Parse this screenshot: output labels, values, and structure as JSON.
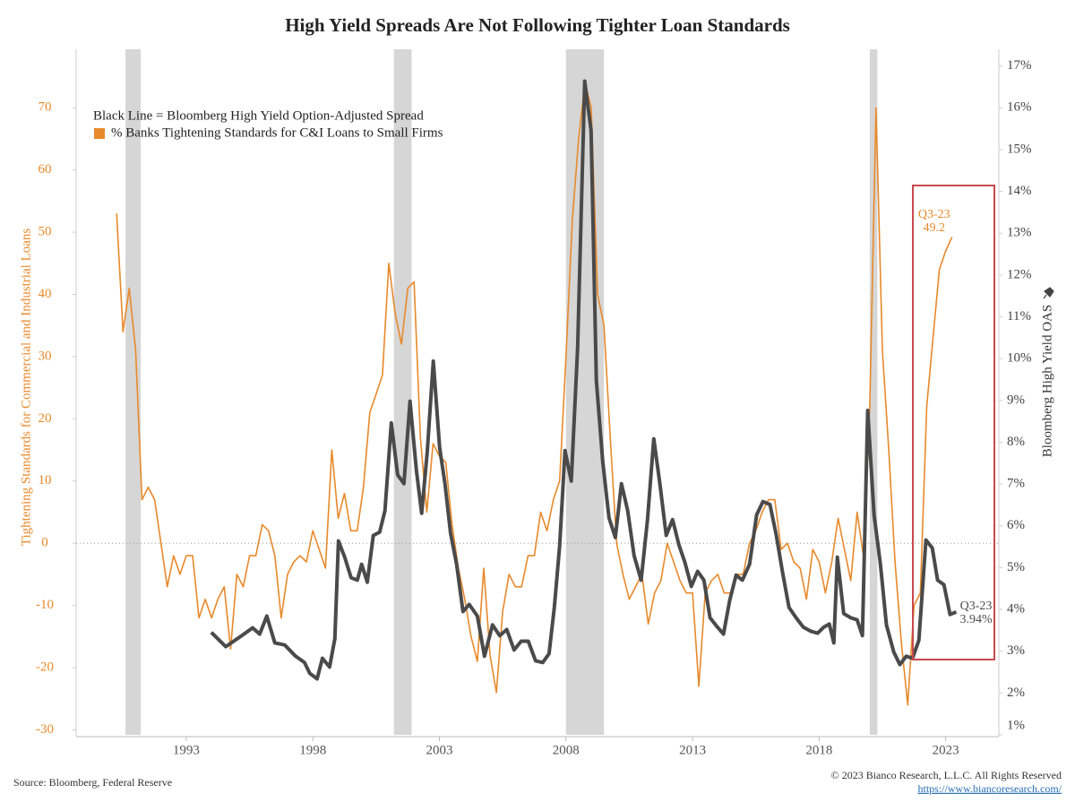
{
  "chart_data": {
    "type": "line",
    "title": "High Yield Spreads Are Not Following Tighter Loan Standards",
    "ylabel": "Tightening Standards for Commercial and Industrial Loans",
    "y2label": "Bloomberg High Yield OAS",
    "source": "Source: Bloomberg, Federal Reserve",
    "copyright": "© 2023 Bianco Research, L.L.C. All Rights Reserved",
    "url": "https://www.biancoresearch.com/",
    "xlim": [
      1988.65,
      2025.1
    ],
    "xticks": [
      1993,
      1998,
      2003,
      2008,
      2013,
      2018,
      2023
    ],
    "ylim": [
      -30.8,
      79.4
    ],
    "yticks": [
      -30,
      -20,
      -10,
      0,
      10,
      20,
      30,
      40,
      50,
      60,
      70
    ],
    "y2lim": [
      1.0,
      17.4
    ],
    "y2ticks": [
      {
        "value": 1,
        "label": "1%"
      },
      {
        "value": 2,
        "label": "2%"
      },
      {
        "value": 3,
        "label": "3%"
      },
      {
        "value": 4,
        "label": "4%"
      },
      {
        "value": 5,
        "label": "5%"
      },
      {
        "value": 6,
        "label": "6%"
      },
      {
        "value": 7,
        "label": "7%"
      },
      {
        "value": 8,
        "label": "8%"
      },
      {
        "value": 9,
        "label": "9%"
      },
      {
        "value": 10,
        "label": "10%"
      },
      {
        "value": 11,
        "label": "11%"
      },
      {
        "value": 12,
        "label": "12%"
      },
      {
        "value": 13,
        "label": "13%"
      },
      {
        "value": 14,
        "label": "14%"
      },
      {
        "value": 15,
        "label": "15%"
      },
      {
        "value": 16,
        "label": "16%"
      },
      {
        "value": 17,
        "label": "17%"
      }
    ],
    "zero_line": true,
    "recessions": [
      [
        1990.6,
        1991.2
      ],
      [
        2001.2,
        2001.9
      ],
      [
        2008.0,
        2009.5
      ],
      [
        2020.0,
        2020.3
      ]
    ],
    "series": [
      {
        "name": "% Banks Tightening Standards for C&I Loans to Small Firms",
        "color": "#e8892b",
        "axis": "y",
        "end_label": [
          "Q3-23",
          "49.2"
        ],
        "x": [
          1990.25,
          1990.5,
          1990.75,
          1991,
          1991.25,
          1991.5,
          1991.75,
          1992,
          1992.25,
          1992.5,
          1992.75,
          1993,
          1993.25,
          1993.5,
          1993.75,
          1994,
          1994.25,
          1994.5,
          1994.75,
          1995,
          1995.25,
          1995.5,
          1995.75,
          1996,
          1996.25,
          1996.5,
          1996.75,
          1997,
          1997.25,
          1997.5,
          1997.75,
          1998,
          1998.25,
          1998.5,
          1998.75,
          1999,
          1999.25,
          1999.5,
          1999.75,
          2000,
          2000.25,
          2000.5,
          2000.75,
          2001,
          2001.25,
          2001.5,
          2001.75,
          2002,
          2002.25,
          2002.5,
          2002.75,
          2003,
          2003.25,
          2003.5,
          2003.75,
          2004,
          2004.25,
          2004.5,
          2004.75,
          2005,
          2005.25,
          2005.5,
          2005.75,
          2006,
          2006.25,
          2006.5,
          2006.75,
          2007,
          2007.25,
          2007.5,
          2007.75,
          2008,
          2008.25,
          2008.5,
          2008.75,
          2009,
          2009.25,
          2009.5,
          2009.75,
          2010,
          2010.25,
          2010.5,
          2010.75,
          2011,
          2011.25,
          2011.5,
          2011.75,
          2012,
          2012.25,
          2012.5,
          2012.75,
          2013,
          2013.25,
          2013.5,
          2013.75,
          2014,
          2014.25,
          2014.5,
          2014.75,
          2015,
          2015.25,
          2015.5,
          2015.75,
          2016,
          2016.25,
          2016.5,
          2016.75,
          2017,
          2017.25,
          2017.5,
          2017.75,
          2018,
          2018.25,
          2018.5,
          2018.75,
          2019,
          2019.25,
          2019.5,
          2019.75,
          2020,
          2020.25,
          2020.5,
          2020.75,
          2021,
          2021.25,
          2021.5,
          2021.75,
          2022,
          2022.25,
          2022.5,
          2022.75,
          2023,
          2023.25
        ],
        "values": [
          53,
          34,
          41,
          31,
          7,
          9,
          7,
          0,
          -7,
          -2,
          -5,
          -2,
          -2,
          -12,
          -9,
          -12,
          -9,
          -7,
          -17,
          -5,
          -7,
          -2,
          -2,
          3,
          2,
          -2,
          -12,
          -5,
          -3,
          -2,
          -3,
          2,
          -1,
          -4,
          15,
          4,
          8,
          2,
          2,
          9,
          21,
          24,
          27,
          45,
          37,
          32,
          41,
          42,
          17,
          5,
          16,
          14,
          13,
          3,
          -4,
          -9,
          -15,
          -19,
          -4,
          -18,
          -24,
          -11,
          -5,
          -7,
          -7,
          -2,
          -2,
          5,
          2,
          7,
          10,
          30,
          52,
          65,
          74,
          70,
          40,
          35,
          17,
          0,
          -5,
          -9,
          -7,
          -5,
          -13,
          -8,
          -6,
          0,
          -3,
          -6,
          -8,
          -8,
          -23,
          -8,
          -6,
          -5,
          -8,
          -8,
          -5,
          -5,
          0,
          2,
          5,
          7,
          7,
          -1,
          0,
          -3,
          -4,
          -9,
          -1,
          -3,
          -8,
          -3,
          4,
          -1,
          -6,
          5,
          -2,
          22,
          70,
          31,
          15,
          -3,
          -16,
          -26,
          -10,
          -8,
          22,
          33,
          44,
          47,
          49.2
        ]
      },
      {
        "name": "Black Line = Bloomberg High Yield Option-Adjusted Spread",
        "color": "#4a4a4a",
        "axis": "y2",
        "end_label": [
          "Q3-23",
          "3.94%"
        ],
        "x": [
          1993.99,
          1994.56,
          1995.19,
          1995.62,
          1995.9,
          1996.18,
          1996.5,
          1996.89,
          1997.32,
          1997.67,
          1997.88,
          1998.17,
          1998.38,
          1998.66,
          1998.87,
          1999.01,
          1999.26,
          1999.51,
          1999.76,
          1999.93,
          2000.15,
          2000.39,
          2000.64,
          2000.85,
          2001.1,
          2001.35,
          2001.6,
          2001.84,
          2002.09,
          2002.3,
          2002.52,
          2002.76,
          2003.01,
          2003.22,
          2003.44,
          2003.68,
          2003.93,
          2004.18,
          2004.5,
          2004.78,
          2005.1,
          2005.38,
          2005.66,
          2005.95,
          2006.23,
          2006.51,
          2006.8,
          2007.08,
          2007.33,
          2007.54,
          2007.75,
          2007.96,
          2008.21,
          2008.46,
          2008.74,
          2008.99,
          2009.2,
          2009.45,
          2009.7,
          2009.95,
          2010.19,
          2010.44,
          2010.69,
          2010.97,
          2011.22,
          2011.47,
          2011.71,
          2011.96,
          2012.21,
          2012.46,
          2012.7,
          2012.95,
          2013.2,
          2013.45,
          2013.69,
          2013.98,
          2014.22,
          2014.47,
          2014.72,
          2014.97,
          2015.25,
          2015.53,
          2015.78,
          2016.06,
          2016.31,
          2016.56,
          2016.81,
          2017.09,
          2017.37,
          2017.66,
          2017.94,
          2018.19,
          2018.4,
          2018.58,
          2018.72,
          2018.97,
          2019.25,
          2019.5,
          2019.71,
          2019.92,
          2020.17,
          2020.42,
          2020.66,
          2020.95,
          2021.19,
          2021.44,
          2021.69,
          2021.94,
          2022.22,
          2022.47,
          2022.68,
          2022.93,
          2023.17,
          2023.42
        ],
        "values": [
          3.45,
          3.11,
          3.37,
          3.56,
          3.41,
          3.84,
          3.2,
          3.15,
          2.88,
          2.73,
          2.47,
          2.34,
          2.83,
          2.62,
          3.3,
          5.64,
          5.25,
          4.76,
          4.7,
          5.08,
          4.65,
          5.77,
          5.85,
          6.36,
          8.46,
          7.22,
          7.01,
          8.98,
          7.33,
          6.3,
          7.76,
          9.94,
          7.86,
          7.01,
          5.83,
          5.08,
          3.95,
          4.12,
          3.84,
          2.88,
          3.63,
          3.37,
          3.52,
          3.03,
          3.24,
          3.24,
          2.77,
          2.73,
          2.94,
          4.05,
          5.51,
          7.8,
          7.07,
          10.26,
          16.64,
          15.46,
          9.47,
          7.54,
          6.19,
          5.72,
          7.01,
          6.36,
          5.29,
          4.7,
          6.15,
          8.08,
          7.01,
          5.77,
          6.15,
          5.55,
          5.12,
          4.55,
          4.91,
          4.7,
          3.8,
          3.58,
          3.41,
          4.22,
          4.82,
          4.7,
          5.08,
          6.26,
          6.58,
          6.51,
          5.77,
          4.87,
          4.05,
          3.8,
          3.58,
          3.48,
          3.43,
          3.58,
          3.65,
          3.2,
          5.25,
          3.9,
          3.8,
          3.75,
          3.37,
          8.76,
          6.26,
          5.08,
          3.63,
          2.98,
          2.68,
          2.88,
          2.83,
          3.26,
          5.66,
          5.47,
          4.7,
          4.59,
          3.88,
          3.94
        ]
      }
    ]
  }
}
